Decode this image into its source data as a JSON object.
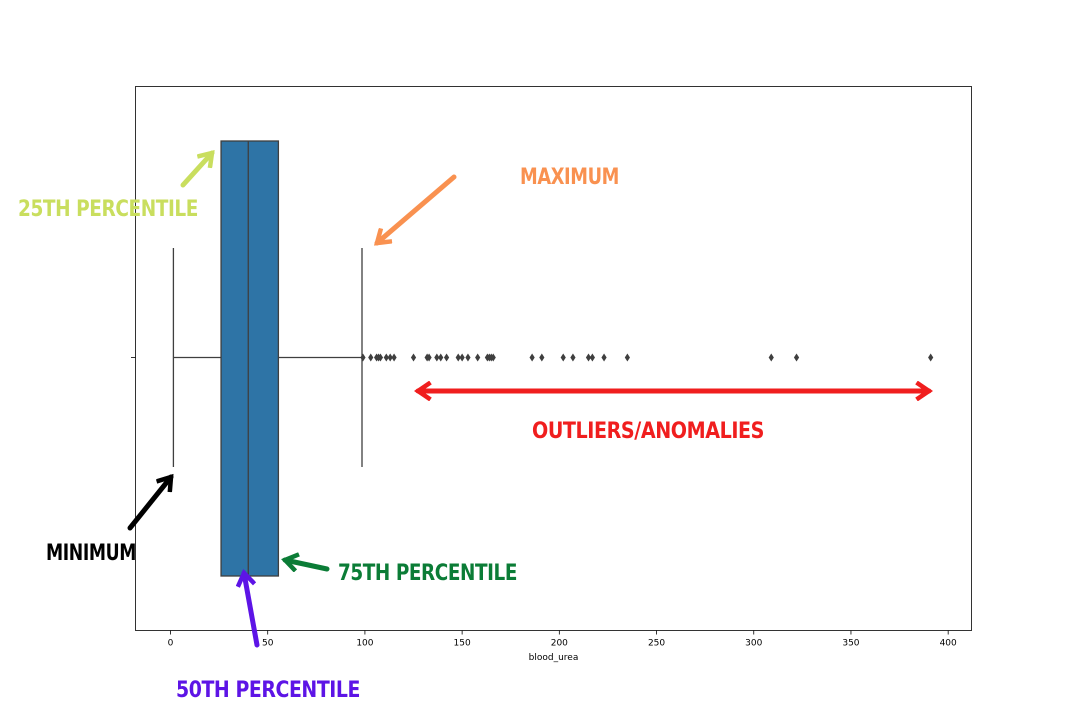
{
  "chart_data": {
    "type": "box",
    "xlabel": "blood_urea",
    "xlim": [
      -18,
      412
    ],
    "xticks": [
      0,
      50,
      100,
      150,
      200,
      250,
      300,
      350,
      400
    ],
    "box": {
      "whisker_low": 1.5,
      "q1": 26,
      "median": 40,
      "q3": 55.5,
      "whisker_high": 98.5,
      "color": "#2e74a6"
    },
    "outliers": [
      99,
      103,
      106,
      107,
      108,
      111,
      113,
      115,
      125,
      132,
      133,
      137,
      139,
      142,
      148,
      150,
      153,
      158,
      163,
      164,
      165,
      166,
      186,
      191,
      202,
      207,
      215,
      217,
      223,
      235,
      309,
      322,
      391
    ]
  },
  "annotations": {
    "p25": {
      "text": "25TH PERCENTILE",
      "color": "#c9de5e"
    },
    "maximum": {
      "text": "MAXIMUM",
      "color": "#f99150"
    },
    "minimum": {
      "text": "MINIMUM",
      "color": "#000000"
    },
    "p75": {
      "text": "75TH PERCENTILE",
      "color": "#0b7c36"
    },
    "p50": {
      "text": "50TH PERCENTILE",
      "color": "#5d14e6"
    },
    "outliers": {
      "text": "OUTLIERS/ANOMALIES",
      "color": "#f01e1e"
    }
  }
}
